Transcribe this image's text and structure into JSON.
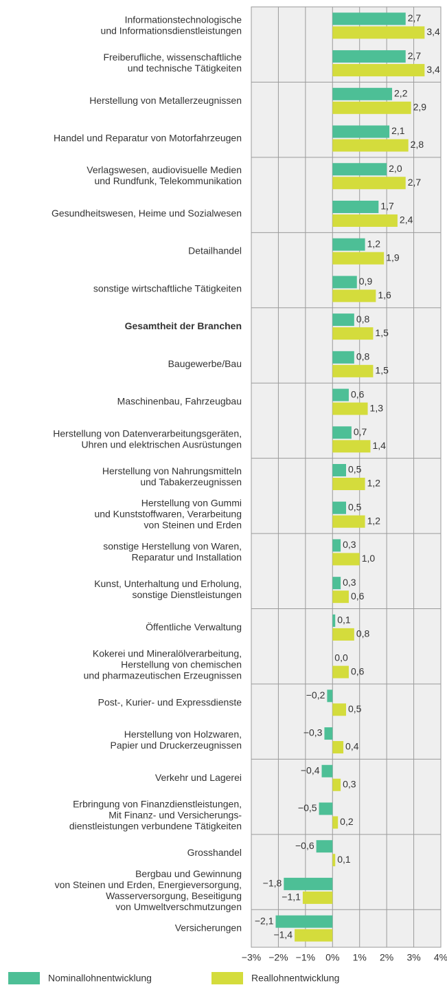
{
  "chart_data": {
    "type": "bar",
    "orientation": "horizontal",
    "categories": [
      [
        "Informationstechnologische",
        "und Informationsdienstleistungen"
      ],
      [
        "Freiberufliche, wissenschaftliche",
        "und technische Tätigkeiten"
      ],
      [
        "Herstellung von Metallerzeugnissen"
      ],
      [
        "Handel und Reparatur von Motorfahrzeugen"
      ],
      [
        "Verlagswesen, audiovisuelle Medien",
        "und Rundfunk, Telekommunikation"
      ],
      [
        "Gesundheitswesen, Heime und Sozialwesen"
      ],
      [
        "Detailhandel"
      ],
      [
        "sonstige wirtschaftliche Tätigkeiten"
      ],
      [
        "Gesamtheit der Branchen"
      ],
      [
        "Baugewerbe/Bau"
      ],
      [
        "Maschinenbau, Fahrzeugbau"
      ],
      [
        "Herstellung von Datenverarbeitungsgeräten,",
        "Uhren und elektrischen Ausrüstungen"
      ],
      [
        "Herstellung von Nahrungsmitteln",
        "und Tabakerzeugnissen"
      ],
      [
        "Herstellung von Gummi",
        "und Kunststoffwaren, Verarbeitung",
        "von Steinen und Erden"
      ],
      [
        "sonstige Herstellung von Waren,",
        "Reparatur und Installation"
      ],
      [
        "Kunst, Unterhaltung und Erholung,",
        "sonstige Dienstleistungen"
      ],
      [
        "Öffentliche Verwaltung"
      ],
      [
        "Kokerei und Mineralölverarbeitung,",
        "Herstellung von chemischen",
        "und pharmazeutischen Erzeugnissen"
      ],
      [
        "Post-, Kurier- und Expressdienste"
      ],
      [
        "Herstellung von Holzwaren,",
        "Papier und Druckerzeugnissen"
      ],
      [
        "Verkehr und Lagerei"
      ],
      [
        "Erbringung von Finanzdienstleistungen,",
        "Mit Finanz- und Versicherungs-",
        "dienstleistungen verbundene Tätigkeiten"
      ],
      [
        "Grosshandel"
      ],
      [
        "Bergbau und Gewinnung",
        "von Steinen und Erden, Energieversorgung,",
        "Wasserversorgung, Beseitigung",
        "von Umweltverschmutzungen"
      ],
      [
        "Versicherungen"
      ]
    ],
    "bold_category": 8,
    "series": [
      {
        "name": "Nominallohnentwicklung",
        "color": "#4dbf96",
        "values": [
          2.7,
          2.7,
          2.2,
          2.1,
          2.0,
          1.7,
          1.2,
          0.9,
          0.8,
          0.8,
          0.6,
          0.7,
          0.5,
          0.5,
          0.3,
          0.3,
          0.1,
          0.0,
          -0.2,
          -0.3,
          -0.4,
          -0.5,
          -0.6,
          -1.8,
          -2.1
        ],
        "value_labels": [
          "2,7",
          "2,7",
          "2,2",
          "2,1",
          "2,0",
          "1,7",
          "1,2",
          "0,9",
          "0,8",
          "0,8",
          "0,6",
          "0,7",
          "0,5",
          "0,5",
          "0,3",
          "0,3",
          "0,1",
          "0,0",
          "−0,2",
          "−0,3",
          "−0,4",
          "−0,5",
          "−0,6",
          "−1,8",
          "−2,1"
        ]
      },
      {
        "name": "Reallohnentwicklung",
        "color": "#d4dc3c",
        "values": [
          3.4,
          3.4,
          2.9,
          2.8,
          2.7,
          2.4,
          1.9,
          1.6,
          1.5,
          1.5,
          1.3,
          1.4,
          1.2,
          1.2,
          1.0,
          0.6,
          0.8,
          0.6,
          0.5,
          0.4,
          0.3,
          0.2,
          0.1,
          -1.1,
          -1.4
        ],
        "value_labels": [
          "3,4",
          "3,4",
          "2,9",
          "2,8",
          "2,7",
          "2,4",
          "1,9",
          "1,6",
          "1,5",
          "1,5",
          "1,3",
          "1,4",
          "1,2",
          "1,2",
          "1,0",
          "0,6",
          "0,8",
          "0,6",
          "0,5",
          "0,4",
          "0,3",
          "0,2",
          "0,1",
          "−1,1",
          "−1,4"
        ]
      }
    ],
    "xlim": [
      -3,
      4
    ],
    "xticks": [
      {
        "value": -3,
        "label": "−3%"
      },
      {
        "value": -2,
        "label": "−2%"
      },
      {
        "value": -1,
        "label": "−1%"
      },
      {
        "value": 0,
        "label": "0%"
      },
      {
        "value": 1,
        "label": "1%"
      },
      {
        "value": 2,
        "label": "2%"
      },
      {
        "value": 3,
        "label": "3%"
      },
      {
        "value": 4,
        "label": "4%"
      }
    ],
    "grid": true
  }
}
